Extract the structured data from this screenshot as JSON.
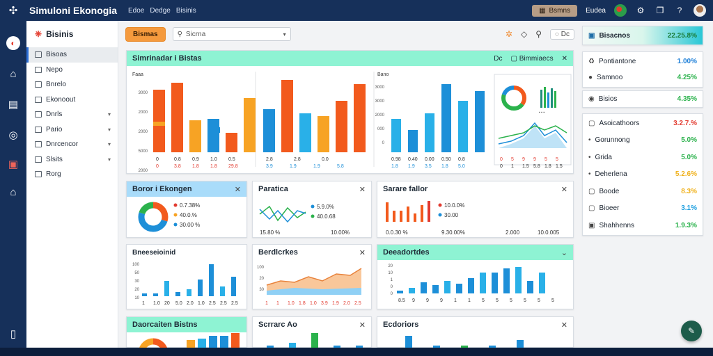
{
  "app": {
    "title": "Simuloni Ekonogia",
    "menu": [
      "Edoe",
      "Dedge",
      "Bisinis"
    ],
    "top_button": "Bsmns",
    "top_label": "Eudea"
  },
  "sidebar": {
    "brand": "Bisinis",
    "items": [
      {
        "label": "Bisoas",
        "active": true,
        "chevron": false
      },
      {
        "label": "Nepo",
        "active": false,
        "chevron": false
      },
      {
        "label": "Bnrelo",
        "active": false,
        "chevron": false
      },
      {
        "label": "Ekonoout",
        "active": false,
        "chevron": false
      },
      {
        "label": "Dnrls",
        "active": false,
        "chevron": true
      },
      {
        "label": "Pario",
        "active": false,
        "chevron": true
      },
      {
        "label": "Dnrcencor",
        "active": false,
        "chevron": true
      },
      {
        "label": "Slsits",
        "active": false,
        "chevron": true
      },
      {
        "label": "Rorg",
        "active": false,
        "chevron": false
      }
    ]
  },
  "toolbar": {
    "button_label": "Bismas",
    "search_placeholder": "Sicrna",
    "dropdown_label": "Dc"
  },
  "main_panel": {
    "title": "Simrinadar i Bistas",
    "tab_label": "Dc",
    "dropdown_label": "Bimmiaecs",
    "chart1": {
      "title": "Faaa",
      "ticks": [
        "3000",
        "2000",
        "2000",
        "5000",
        "2000",
        "0"
      ],
      "xlabels": [
        "0",
        "0.8",
        "0.9",
        "1.0",
        "0.5"
      ],
      "bottom": [
        "0",
        "3.8",
        "1.8",
        "1.8",
        "29.8"
      ]
    },
    "chart2": {
      "xlabels": [
        "2.8",
        "2.8",
        "0.0"
      ],
      "bottom": [
        "3.9",
        "1.9",
        "1.9",
        "5.8"
      ]
    },
    "chart3": {
      "title": "Bano",
      "ticks": [
        "3000",
        "3000",
        "2000",
        "000",
        "0"
      ],
      "xlabels": [
        "0.98",
        "0.40",
        "0.00",
        "0.50",
        "0.8"
      ],
      "bottom": [
        "1.8",
        "1.9",
        "3.5",
        "1.8",
        "5.0"
      ]
    },
    "chart4": {
      "xlabels": [
        "0",
        "5",
        "9",
        "9",
        "5",
        "5"
      ],
      "bottom": [
        "0",
        "1",
        "1.5",
        "5.8",
        "1.8",
        "1.5"
      ]
    }
  },
  "widgets": [
    {
      "title": "Boror i Ekongen",
      "stats": [
        "0.7.38%",
        "40.0.%",
        "30.00 %"
      ]
    },
    {
      "title": "Paratica",
      "stats": [
        "5.9.0%",
        "40.0.68"
      ],
      "footer": [
        "15.80 %",
        "10.00%"
      ]
    },
    {
      "title": "Sarare fallor",
      "stats": [
        "10.0.0%",
        "30.00"
      ],
      "footer": [
        "0.0.30 %",
        "9.30.00%",
        "2.000",
        "10.0.005"
      ]
    },
    {
      "title": "Bneeseioinid",
      "ticks": [
        "100",
        "50",
        "30",
        "20",
        "10"
      ],
      "xlabels": [
        "1",
        "1.0",
        "20",
        "5.0",
        "2.0",
        "1.0",
        "2.5",
        "2.5",
        "2.5"
      ]
    },
    {
      "title": "Berdlcrkes",
      "ticks": [
        "100",
        "20",
        "30"
      ],
      "xlabels": [
        "1",
        "1",
        "1.0",
        "1.8",
        "1.0",
        "3.9",
        "1.9",
        "2.0",
        "2.5"
      ]
    },
    {
      "title": "Deeadortdes",
      "ticks": [
        "20",
        "10",
        "1",
        "0",
        "0"
      ],
      "xlabels": [
        "8.5",
        "9",
        "9",
        "9",
        "1",
        "1",
        "5",
        "5",
        "5",
        "5",
        "5",
        "5"
      ]
    },
    {
      "title": "Daorcaiten Bistns"
    },
    {
      "title": "Scrrarc Ao"
    },
    {
      "title": "Ecdoriors"
    }
  ],
  "right_panel": {
    "header": {
      "label": "Bisacnos",
      "value": "22.25.8%"
    },
    "card1": [
      {
        "label": "Pontiantone",
        "value": "1.00%",
        "color": "#1d7fd8"
      },
      {
        "label": "Samnoo",
        "value": "4.25%",
        "color": "#2bb24c"
      }
    ],
    "card2": [
      {
        "label": "Bisios",
        "value": "4.35%",
        "color": "#2bb24c"
      }
    ],
    "card3": [
      {
        "label": "Asoicathoors",
        "value": "3.2.7.%",
        "color": "#e23a2f"
      },
      {
        "label": "Gorunnong",
        "value": "5.0%",
        "color": "#2bb24c"
      },
      {
        "label": "Grida",
        "value": "5.0%",
        "color": "#2bb24c"
      },
      {
        "label": "Deherlena",
        "value": "5.2.6%",
        "color": "#f0b21e"
      },
      {
        "label": "Boode",
        "value": "8.3%",
        "color": "#f0b21e"
      },
      {
        "label": "Bioeer",
        "value": "3.1%",
        "color": "#1d9fe0"
      },
      {
        "label": "Shahhenns",
        "value": "1.9.3%",
        "color": "#2bb24c"
      }
    ]
  }
}
